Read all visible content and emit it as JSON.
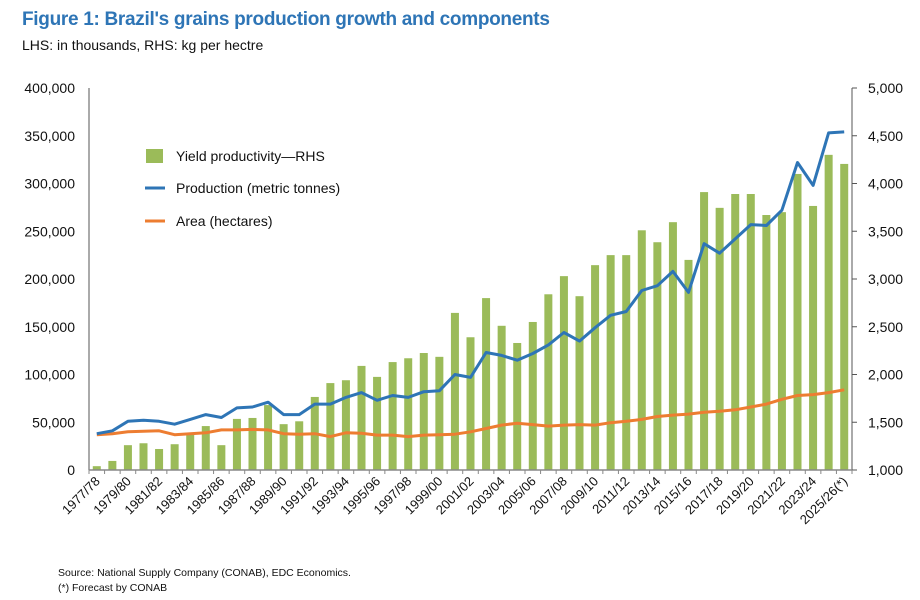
{
  "chart_data": {
    "type": "bar+line",
    "title": "Figure 1: Brazil's grains production growth and components",
    "subtitle": "LHS: in thousands, RHS: kg per hectre",
    "categories": [
      "1977/78",
      "1978/79",
      "1979/80",
      "1980/81",
      "1981/82",
      "1982/83",
      "1983/84",
      "1984/85",
      "1985/86",
      "1986/87",
      "1987/88",
      "1988/89",
      "1989/90",
      "1990/91",
      "1991/92",
      "1992/93",
      "1993/94",
      "1994/95",
      "1995/96",
      "1996/97",
      "1997/98",
      "1998/99",
      "1999/00",
      "2000/01",
      "2001/02",
      "2002/03",
      "2003/04",
      "2004/05",
      "2005/06",
      "2006/07",
      "2007/08",
      "2008/09",
      "2009/10",
      "2010/11",
      "2011/12",
      "2012/13",
      "2013/14",
      "2014/15",
      "2015/16",
      "2016/17",
      "2017/18",
      "2018/19",
      "2019/20",
      "2020/21",
      "2021/22",
      "2022/23",
      "2023/24",
      "2024/25",
      "2025/26(*)"
    ],
    "xtick_labels": [
      "1977/78",
      "1979/80",
      "1981/82",
      "1983/84",
      "1985/86",
      "1987/88",
      "1989/90",
      "1991/92",
      "1993/94",
      "1995/96",
      "1997/98",
      "1999/00",
      "2001/02",
      "2003/04",
      "2005/06",
      "2007/08",
      "2009/10",
      "2011/12",
      "2013/14",
      "2015/16",
      "2017/18",
      "2019/20",
      "2021/22",
      "2023/24",
      "2025/26(*)"
    ],
    "y_left": {
      "range": [
        0,
        400000
      ],
      "ticks": [
        "0",
        "50,000",
        "100,000",
        "150,000",
        "200,000",
        "250,000",
        "300,000",
        "350,000",
        "400,000"
      ]
    },
    "y_right": {
      "range": [
        1000,
        5000
      ],
      "ticks": [
        "1,000",
        "1,500",
        "2,000",
        "2,500",
        "3,000",
        "3,500",
        "4,000",
        "4,500",
        "5,000"
      ]
    },
    "legend_position": "top-left",
    "grid": false,
    "series": [
      {
        "name": "Yield productivity—RHS",
        "type": "bar",
        "axis": "right",
        "color": "#9bbb59",
        "values": [
          1040,
          1095,
          1260,
          1280,
          1220,
          1270,
          1380,
          1460,
          1260,
          1535,
          1545,
          1680,
          1480,
          1510,
          1765,
          1910,
          1940,
          2090,
          1975,
          2130,
          2170,
          2225,
          2185,
          2645,
          2390,
          2800,
          2510,
          2330,
          2550,
          2840,
          3030,
          2820,
          3145,
          3250,
          3250,
          3510,
          3385,
          3595,
          3200,
          3910,
          3745,
          3890,
          3890,
          3670,
          3700,
          4100,
          3765,
          4300,
          4205
        ]
      },
      {
        "name": "Production (metric tonnes)",
        "type": "line",
        "axis": "left",
        "color": "#2e75b6",
        "values": [
          38000,
          41000,
          51000,
          52000,
          51000,
          48000,
          53000,
          58000,
          55000,
          65000,
          66000,
          71000,
          58000,
          58000,
          69000,
          69000,
          76000,
          81000,
          73000,
          78000,
          76000,
          82000,
          83000,
          100000,
          97000,
          123000,
          120000,
          115000,
          122000,
          131000,
          144000,
          135000,
          149000,
          162000,
          166000,
          188000,
          193000,
          208000,
          186000,
          237000,
          227000,
          242000,
          257000,
          256000,
          272000,
          322000,
          298000,
          353000,
          354000
        ]
      },
      {
        "name": "Area (hectares)",
        "type": "line",
        "axis": "left",
        "color": "#ed7d31",
        "values": [
          37000,
          38000,
          40000,
          40500,
          41000,
          37000,
          38000,
          39000,
          42000,
          42000,
          42500,
          42000,
          38000,
          37500,
          38000,
          35000,
          39000,
          38500,
          36500,
          36500,
          35000,
          36500,
          37000,
          37500,
          40000,
          43500,
          47000,
          49000,
          47500,
          46000,
          47000,
          47500,
          47000,
          49500,
          51000,
          53000,
          56000,
          57500,
          58500,
          60500,
          61500,
          63000,
          66000,
          69000,
          74000,
          78000,
          79000,
          81000,
          84000
        ]
      }
    ]
  },
  "footer": {
    "source": "Source: National Supply Company (CONAB), EDC Economics.",
    "note": "(*) Forecast by CONAB"
  }
}
